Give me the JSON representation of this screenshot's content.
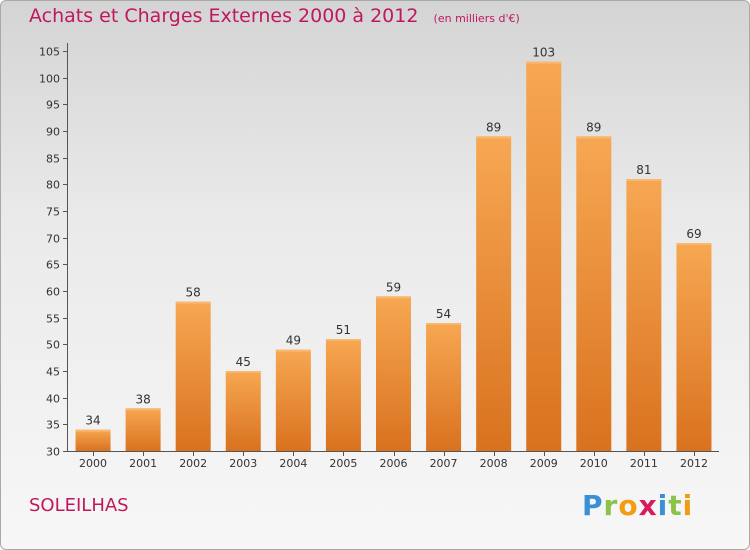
{
  "header": {
    "title": "Achats et Charges Externes 2000 à 2012",
    "subtitle": "(en milliers d'€)"
  },
  "commune": "SOLEILHAS",
  "logo": {
    "text": "Proxiti",
    "letters": [
      {
        "char": "P",
        "color": "#3a8fd6"
      },
      {
        "char": "r",
        "color": "#8bc34a"
      },
      {
        "char": "o",
        "color": "#f39c12"
      },
      {
        "char": "x",
        "color": "#d81b60"
      },
      {
        "char": "i",
        "color": "#3a8fd6"
      },
      {
        "char": "t",
        "color": "#8bc34a"
      },
      {
        "char": "i",
        "color": "#f39c12"
      }
    ]
  },
  "colors": {
    "bar_light": "#f7a752",
    "bar_dark": "#d9721f",
    "title": "#c0185e",
    "axis": "#555555"
  },
  "chart_data": {
    "type": "bar",
    "title": "Achats et Charges Externes 2000 à 2012",
    "subtitle": "(en milliers d'€)",
    "xlabel": "",
    "ylabel": "",
    "categories": [
      "2000",
      "2001",
      "2002",
      "2003",
      "2004",
      "2005",
      "2006",
      "2007",
      "2008",
      "2009",
      "2010",
      "2011",
      "2012"
    ],
    "values": [
      34,
      38,
      58,
      45,
      49,
      51,
      59,
      54,
      89,
      103,
      89,
      81,
      69
    ],
    "ylim": [
      30,
      105
    ],
    "yticks": [
      30,
      35,
      40,
      45,
      50,
      55,
      60,
      65,
      70,
      75,
      80,
      85,
      90,
      95,
      100,
      105
    ],
    "grid": false,
    "data_labels": true
  }
}
